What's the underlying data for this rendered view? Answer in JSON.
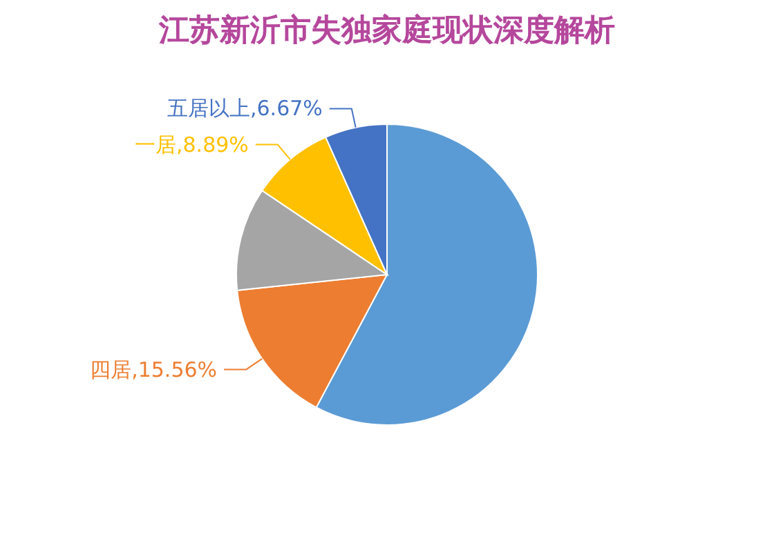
{
  "chart_data": {
    "type": "pie",
    "title": "江苏新沂市失独家庭现状深度解析",
    "categories": [
      null,
      "四居",
      null,
      "一居",
      "五居以上"
    ],
    "values": [
      57.78,
      15.56,
      11.11,
      8.89,
      6.67
    ],
    "colors": [
      "#5b9bd5",
      "#ed7d31",
      "#a5a5a5",
      "#ffc000",
      "#4472c4"
    ],
    "value_labels": [
      null,
      "15.56%",
      null,
      "8.89%",
      "6.67%"
    ]
  }
}
